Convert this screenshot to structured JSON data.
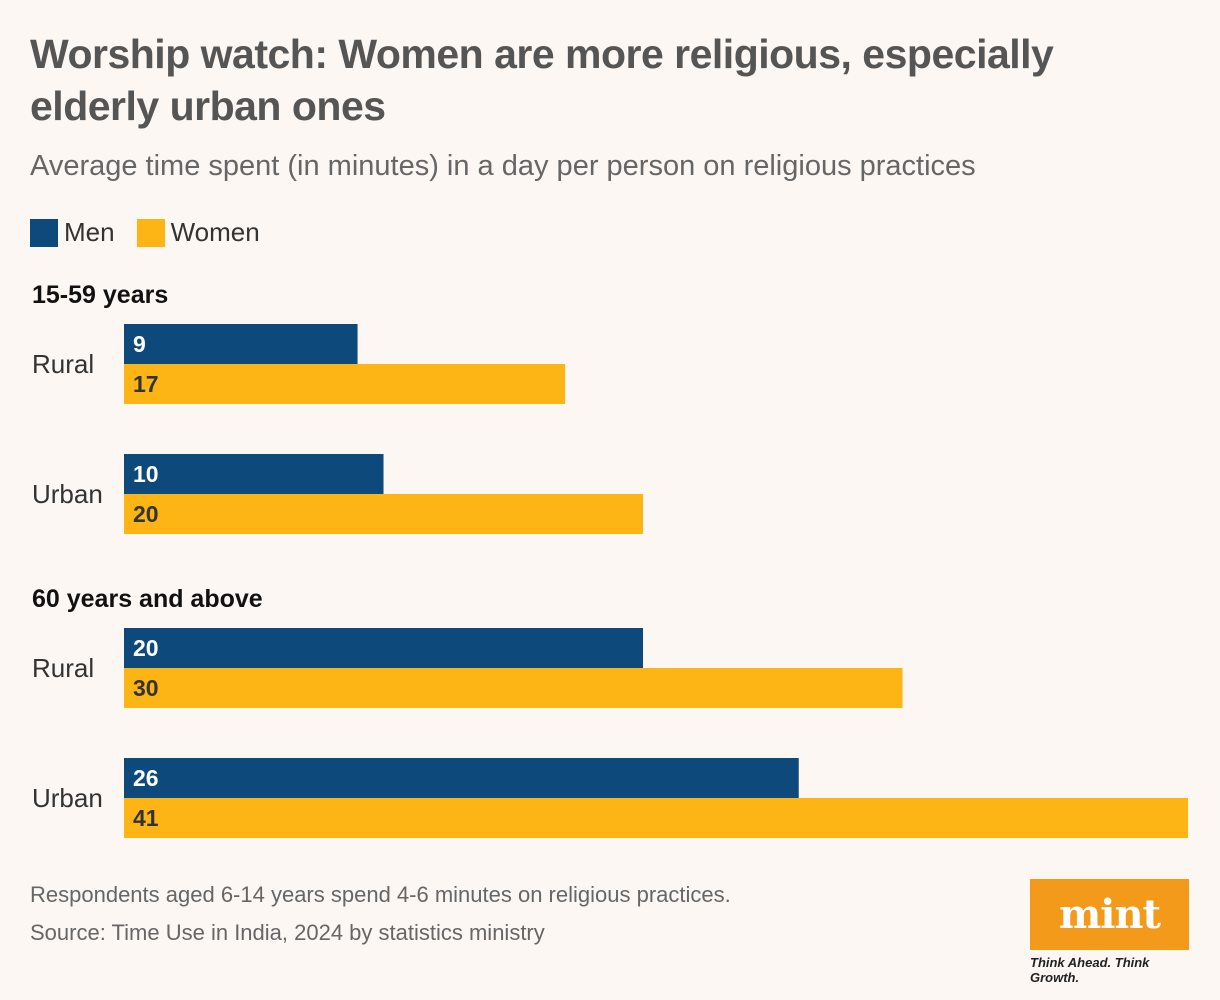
{
  "header": {
    "title": "Worship watch: Women are more religious, especially elderly urban ones",
    "subtitle": "Average time spent (in minutes) in a day per person on religious practices"
  },
  "legend": {
    "men_label": "Men",
    "women_label": "Women"
  },
  "colors": {
    "men": "#0d4a7b",
    "women": "#fdb515"
  },
  "chart_data": {
    "type": "bar",
    "orientation": "horizontal",
    "title": "Worship watch: Women are more religious, especially elderly urban ones",
    "subtitle": "Average time spent (in minutes) in a day per person on religious practices",
    "xlim": [
      0,
      41
    ],
    "series_names": [
      "Men",
      "Women"
    ],
    "groups": [
      {
        "name": "15-59 years",
        "categories": [
          {
            "label": "Rural",
            "values": [
              9,
              17
            ]
          },
          {
            "label": "Urban",
            "values": [
              10,
              20
            ]
          }
        ]
      },
      {
        "name": "60 years and above",
        "categories": [
          {
            "label": "Rural",
            "values": [
              20,
              30
            ]
          },
          {
            "label": "Urban",
            "values": [
              26,
              41
            ]
          }
        ]
      }
    ]
  },
  "footer": {
    "note": "Respondents aged 6-14 years spend 4-6 minutes on religious practices.",
    "source": "Source: Time Use in India, 2024 by statistics ministry"
  },
  "brand": {
    "logo_text": "mint",
    "tagline": "Think Ahead. Think Growth."
  }
}
